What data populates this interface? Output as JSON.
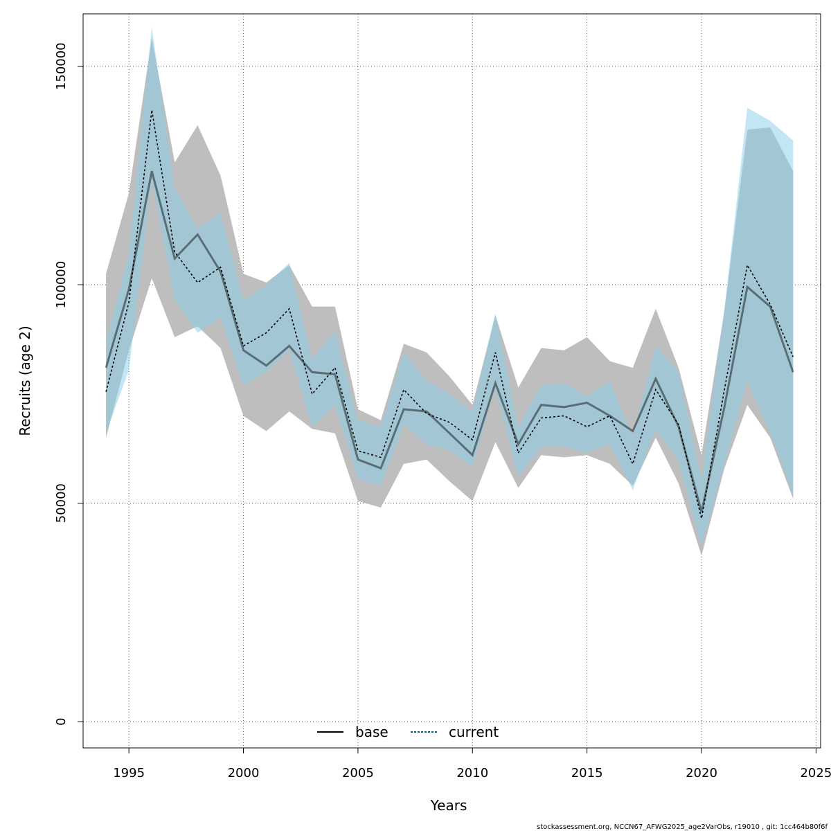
{
  "chart_data": {
    "type": "line",
    "title": "",
    "xlabel": "Years",
    "ylabel": "Recruits (age 2)",
    "xlim": [
      1993,
      2025.2
    ],
    "ylim": [
      -6000,
      162000
    ],
    "xticks": [
      1995,
      2000,
      2005,
      2010,
      2015,
      2020,
      2025
    ],
    "yticks": [
      0,
      50000,
      100000,
      150000
    ],
    "grid": true,
    "legend_position": "bottom",
    "x": [
      1994,
      1995,
      1996,
      1997,
      1998,
      1999,
      2000,
      2001,
      2002,
      2003,
      2004,
      2005,
      2006,
      2007,
      2008,
      2009,
      2010,
      2011,
      2012,
      2013,
      2014,
      2015,
      2016,
      2017,
      2018,
      2019,
      2020,
      2021,
      2022,
      2023,
      2024
    ],
    "series": [
      {
        "name": "base",
        "line_style": "solid",
        "color": "#000000",
        "band_color": "#bebebe",
        "values": [
          81000,
          99000,
          126000,
          106000,
          111500,
          103000,
          85000,
          81500,
          86000,
          80000,
          79500,
          60000,
          58000,
          71500,
          71000,
          66000,
          61000,
          77500,
          63500,
          72500,
          72000,
          73000,
          70000,
          66500,
          78500,
          67500,
          48000,
          72000,
          99500,
          95000,
          80000
        ],
        "lower": [
          65000,
          85000,
          101500,
          88000,
          90500,
          85500,
          70000,
          66500,
          71000,
          67000,
          66000,
          50500,
          49000,
          59000,
          60000,
          55000,
          50500,
          64000,
          53500,
          61000,
          60500,
          61000,
          59000,
          54000,
          65000,
          54500,
          38000,
          58000,
          72500,
          65000,
          51000
        ],
        "upper": [
          102500,
          121000,
          156500,
          128000,
          136500,
          125000,
          102500,
          100500,
          104500,
          95000,
          95000,
          71500,
          69000,
          86500,
          84500,
          79000,
          72500,
          93000,
          76500,
          85500,
          85000,
          88000,
          82500,
          81000,
          94500,
          81000,
          61000,
          94000,
          135500,
          136000,
          126000
        ]
      },
      {
        "name": "current",
        "line_style": "dashed",
        "color": "#00607a",
        "band_color": "#87ceeb",
        "values": [
          75500,
          96000,
          140000,
          107500,
          100500,
          104000,
          86000,
          89000,
          94500,
          75000,
          81000,
          62000,
          60500,
          76000,
          70500,
          68500,
          64500,
          84500,
          61500,
          69500,
          70000,
          67500,
          70000,
          59000,
          76000,
          68000,
          46500,
          76000,
          104500,
          95500,
          83500
        ],
        "lower": [
          66000,
          80500,
          124000,
          96500,
          89000,
          92500,
          77000,
          80000,
          85000,
          67500,
          72500,
          55500,
          54000,
          68000,
          63500,
          62000,
          58500,
          76500,
          56000,
          63000,
          63000,
          61500,
          63500,
          53000,
          67000,
          59500,
          40000,
          59000,
          78000,
          66000,
          52000
        ],
        "upper": [
          87000,
          107000,
          159000,
          122000,
          113000,
          116500,
          96500,
          100000,
          105000,
          83000,
          89500,
          69000,
          67500,
          84500,
          78000,
          75000,
          71000,
          93500,
          67500,
          77000,
          77500,
          74500,
          78000,
          65500,
          86000,
          80000,
          55500,
          94500,
          140500,
          137500,
          133000
        ]
      }
    ]
  },
  "footer": "stockassessment.org, NCCN67_AFWG2025_age2VarObs, r19010 , git: 1cc464b80f6f"
}
